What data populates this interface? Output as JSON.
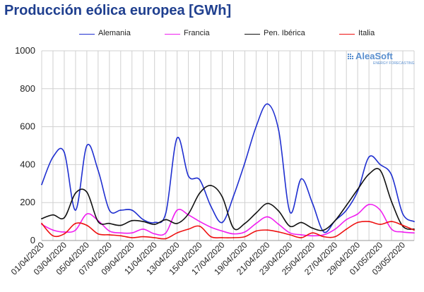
{
  "title": "Producción eólica europea [GWh]",
  "logo": {
    "name": "AleaSoft",
    "tagline": "ENERGY FORECASTING",
    "color": "#5a8fcf"
  },
  "chart_data": {
    "type": "line",
    "title": "Producción eólica europea [GWh]",
    "ylim": [
      0,
      1000
    ],
    "yticks": [
      0,
      200,
      400,
      600,
      800,
      1000
    ],
    "grid": true,
    "legend_position": "top",
    "x": [
      "01/04/2020",
      "02/04/2020",
      "03/04/2020",
      "04/04/2020",
      "05/04/2020",
      "06/04/2020",
      "07/04/2020",
      "08/04/2020",
      "09/04/2020",
      "10/04/2020",
      "11/04/2020",
      "12/04/2020",
      "13/04/2020",
      "14/04/2020",
      "15/04/2020",
      "16/04/2020",
      "17/04/2020",
      "18/04/2020",
      "19/04/2020",
      "20/04/2020",
      "21/04/2020",
      "22/04/2020",
      "23/04/2020",
      "24/04/2020",
      "25/04/2020",
      "26/04/2020",
      "27/04/2020",
      "28/04/2020",
      "29/04/2020",
      "30/04/2020",
      "01/05/2020",
      "02/05/2020",
      "03/05/2020",
      "04/05/2020"
    ],
    "xtick_labels": [
      "01/04/2020",
      "03/04/2020",
      "05/04/2020",
      "07/04/2020",
      "09/04/2020",
      "11/04/2020",
      "13/04/2020",
      "15/04/2020",
      "17/04/2020",
      "19/04/2020",
      "21/04/2020",
      "23/04/2020",
      "25/04/2020",
      "27/04/2020",
      "29/04/2020",
      "01/05/2020",
      "03/05/2020"
    ],
    "series": [
      {
        "name": "Alemania",
        "color": "#1f2fd0",
        "values": [
          295,
          440,
          465,
          160,
          500,
          370,
          160,
          160,
          160,
          110,
          95,
          145,
          540,
          340,
          320,
          180,
          95,
          235,
          410,
          600,
          720,
          580,
          150,
          325,
          195,
          45,
          105,
          160,
          260,
          440,
          400,
          345,
          140,
          100
        ]
      },
      {
        "name": "Francia",
        "color": "#f01ef0",
        "values": [
          85,
          55,
          45,
          55,
          140,
          105,
          50,
          40,
          40,
          60,
          35,
          40,
          160,
          135,
          100,
          70,
          50,
          35,
          45,
          90,
          125,
          85,
          40,
          30,
          25,
          30,
          60,
          110,
          140,
          190,
          160,
          60,
          45,
          40
        ]
      },
      {
        "name": "Pen. Ibérica",
        "color": "#111111",
        "values": [
          115,
          135,
          120,
          250,
          255,
          100,
          90,
          80,
          105,
          100,
          85,
          110,
          90,
          140,
          250,
          290,
          230,
          65,
          90,
          145,
          195,
          155,
          75,
          95,
          65,
          55,
          105,
          185,
          270,
          350,
          370,
          205,
          75,
          60
        ]
      },
      {
        "name": "Italia",
        "color": "#ee1111",
        "values": [
          90,
          25,
          35,
          90,
          80,
          35,
          30,
          25,
          15,
          20,
          15,
          10,
          40,
          60,
          75,
          20,
          15,
          15,
          20,
          50,
          55,
          45,
          30,
          15,
          40,
          20,
          20,
          60,
          95,
          100,
          85,
          100,
          80,
          55
        ]
      }
    ]
  }
}
